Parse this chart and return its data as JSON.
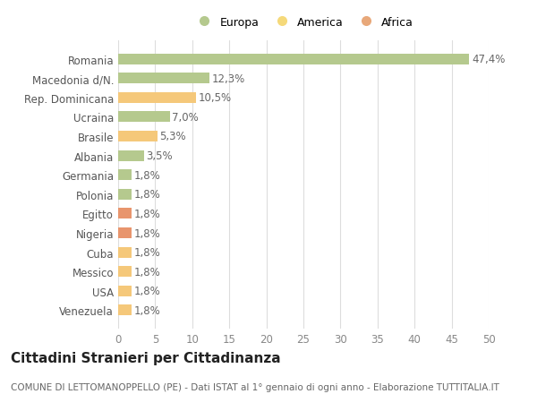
{
  "categories": [
    "Venezuela",
    "USA",
    "Messico",
    "Cuba",
    "Nigeria",
    "Egitto",
    "Polonia",
    "Germania",
    "Albania",
    "Brasile",
    "Ucraina",
    "Rep. Dominicana",
    "Macedonia d/N.",
    "Romania"
  ],
  "values": [
    1.8,
    1.8,
    1.8,
    1.8,
    1.8,
    1.8,
    1.8,
    1.8,
    3.5,
    5.3,
    7.0,
    10.5,
    12.3,
    47.4
  ],
  "labels": [
    "1,8%",
    "1,8%",
    "1,8%",
    "1,8%",
    "1,8%",
    "1,8%",
    "1,8%",
    "1,8%",
    "3,5%",
    "5,3%",
    "7,0%",
    "10,5%",
    "12,3%",
    "47,4%"
  ],
  "colors": [
    "#f5c87a",
    "#f5c87a",
    "#f5c87a",
    "#f5c87a",
    "#e8956d",
    "#e8956d",
    "#b5c98e",
    "#b5c98e",
    "#b5c98e",
    "#f5c87a",
    "#b5c98e",
    "#f5c87a",
    "#b5c98e",
    "#b5c98e"
  ],
  "legend_labels": [
    "Europa",
    "America",
    "Africa"
  ],
  "legend_colors": [
    "#b5c98e",
    "#f5d97a",
    "#e8a87a"
  ],
  "title": "Cittadini Stranieri per Cittadinanza",
  "subtitle": "COMUNE DI LETTOMANOPPELLO (PE) - Dati ISTAT al 1° gennaio di ogni anno - Elaborazione TUTTITALIA.IT",
  "xlim": [
    0,
    50
  ],
  "xticks": [
    0,
    5,
    10,
    15,
    20,
    25,
    30,
    35,
    40,
    45,
    50
  ],
  "background_color": "#ffffff",
  "grid_color": "#dddddd",
  "bar_height": 0.55,
  "label_fontsize": 8.5,
  "tick_fontsize": 8.5,
  "title_fontsize": 11,
  "subtitle_fontsize": 7.5
}
